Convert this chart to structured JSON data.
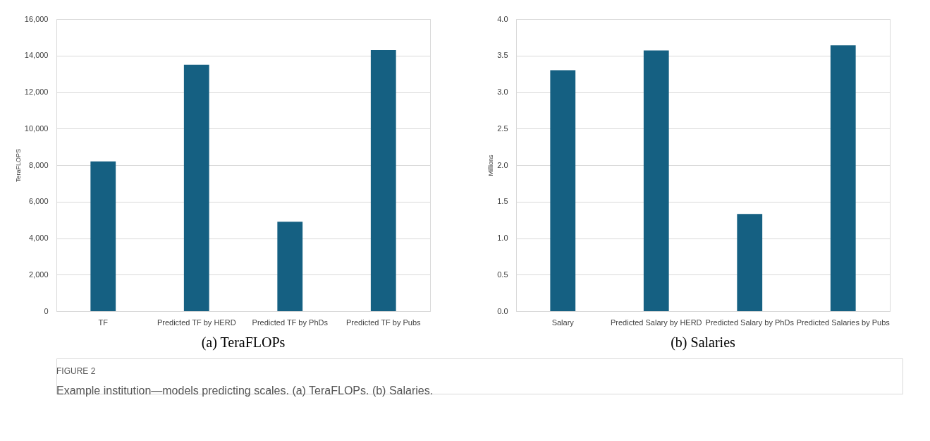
{
  "chart_data": [
    {
      "type": "bar",
      "title": "(a) TeraFLOPs",
      "ylabel": "TeraFLOPS",
      "categories": [
        "TF",
        "Predicted TF by HERD",
        "Predicted TF by PhDs",
        "Predicted TF by Pubs"
      ],
      "values": [
        8200,
        13500,
        4900,
        14300
      ],
      "color": "#156082",
      "ylim": [
        0,
        16000
      ],
      "yticks": [
        {
          "value": 0,
          "label": "0"
        },
        {
          "value": 2000,
          "label": "2,000"
        },
        {
          "value": 4000,
          "label": "4,000"
        },
        {
          "value": 6000,
          "label": "6,000"
        },
        {
          "value": 8000,
          "label": "8,000"
        },
        {
          "value": 10000,
          "label": "10,000"
        },
        {
          "value": 12000,
          "label": "12,000"
        },
        {
          "value": 14000,
          "label": "14,000"
        },
        {
          "value": 16000,
          "label": "16,000"
        }
      ],
      "grid": "y",
      "annotations": [
        "FIGURE 2",
        "Example institution—models predicting scales. (a) TeraFLOPs. (b) Salaries."
      ]
    },
    {
      "type": "bar",
      "title": "(b) Salaries",
      "ylabel": "Millions",
      "categories": [
        "Salary",
        "Predicted Salary by HERD",
        "Predicted Salary by PhDs",
        "Predicted Salaries by Pubs"
      ],
      "values": [
        3.3,
        3.57,
        1.33,
        3.64
      ],
      "color": "#156082",
      "ylim": [
        0,
        4
      ],
      "yticks": [
        {
          "value": 0,
          "label": "0.0"
        },
        {
          "value": 0.5,
          "label": "0.5"
        },
        {
          "value": 1,
          "label": "1.0"
        },
        {
          "value": 1.5,
          "label": "1.5"
        },
        {
          "value": 2,
          "label": "2.0"
        },
        {
          "value": 2.5,
          "label": "2.5"
        },
        {
          "value": 3,
          "label": "3.0"
        },
        {
          "value": 3.5,
          "label": "3.5"
        },
        {
          "value": 4,
          "label": "4.0"
        }
      ],
      "grid": "y"
    }
  ]
}
